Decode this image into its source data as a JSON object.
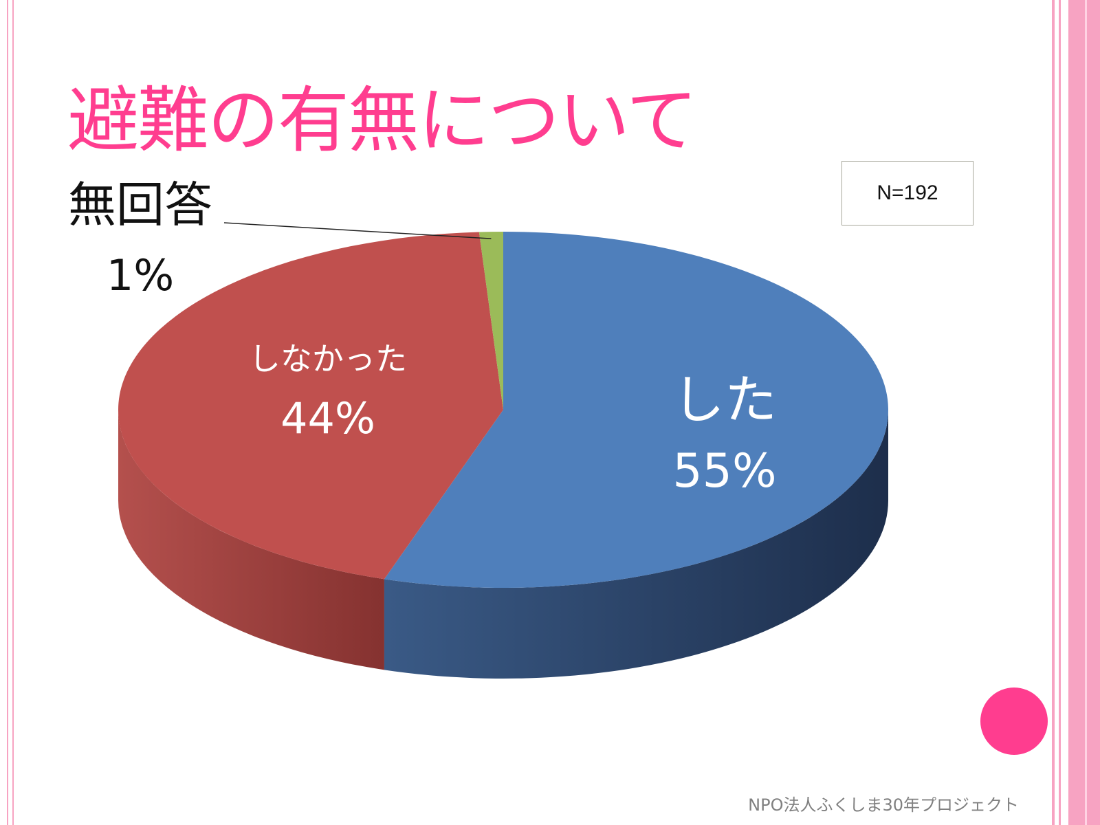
{
  "title": "避難の有無について",
  "n_label": "N=192",
  "footer": "NPO法人ふくしま30年プロジェクト",
  "colors": {
    "accent": "#ff3d8f",
    "frame": "#f7a3c2",
    "slice_did": "#4f7fbb",
    "slice_did_side": "#26395a",
    "slice_did_not": "#c0504e",
    "slice_did_not_side": "#8e3433",
    "slice_no_answer": "#9bbb59"
  },
  "chart_data": {
    "type": "pie",
    "style": "3d",
    "title": "避難の有無について",
    "note": "N=192",
    "slices": [
      {
        "label": "した",
        "value": 55,
        "display": "55%"
      },
      {
        "label": "しなかった",
        "value": 44,
        "display": "44%"
      },
      {
        "label": "無回答",
        "value": 1,
        "display": "1%"
      }
    ]
  }
}
